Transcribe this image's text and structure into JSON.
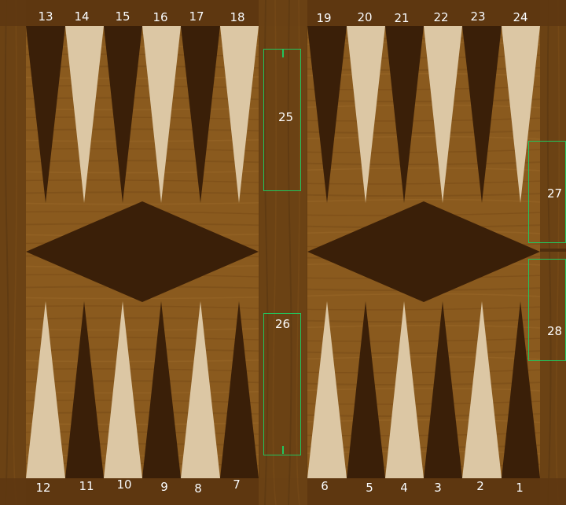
{
  "board": {
    "colors": {
      "frame": "#5e3711",
      "frame_edge": "#4e2d0e",
      "playfield": "#8a5a1e",
      "bar": "#6b4214",
      "dark_point": "#3a1f08",
      "light_point": "#dcc7a4",
      "diamond": "#3a1f08",
      "zone_outline": "#22c55e",
      "label_text": "#ffffff"
    },
    "top_labels_left": [
      "13",
      "14",
      "15",
      "16",
      "17",
      "18"
    ],
    "top_labels_right": [
      "19",
      "20",
      "21",
      "22",
      "23",
      "24"
    ],
    "bottom_labels_left": [
      "12",
      "11",
      "10",
      "9",
      "8",
      "7"
    ],
    "bottom_labels_right": [
      "6",
      "5",
      "4",
      "3",
      "2",
      "1"
    ],
    "zones": {
      "bar_top": "25",
      "bar_bottom": "26",
      "bearoff_top": "27",
      "bearoff_bottom": "28"
    }
  }
}
